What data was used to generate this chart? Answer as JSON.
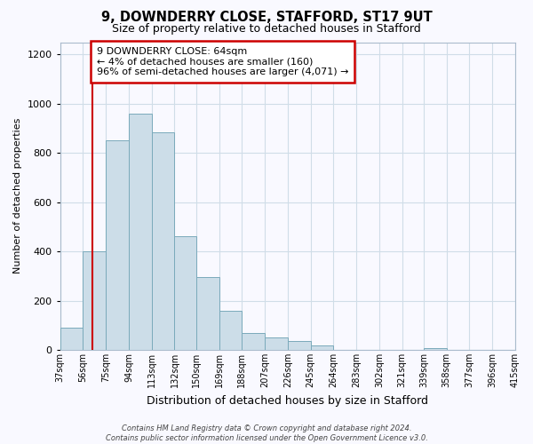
{
  "title1": "9, DOWNDERRY CLOSE, STAFFORD, ST17 9UT",
  "title2": "Size of property relative to detached houses in Stafford",
  "xlabel": "Distribution of detached houses by size in Stafford",
  "ylabel": "Number of detached properties",
  "bin_labels": [
    "37sqm",
    "56sqm",
    "75sqm",
    "94sqm",
    "113sqm",
    "132sqm",
    "150sqm",
    "169sqm",
    "188sqm",
    "207sqm",
    "226sqm",
    "245sqm",
    "264sqm",
    "283sqm",
    "302sqm",
    "321sqm",
    "339sqm",
    "358sqm",
    "377sqm",
    "396sqm",
    "415sqm"
  ],
  "bar_heights": [
    90,
    400,
    850,
    960,
    885,
    460,
    295,
    160,
    70,
    52,
    35,
    18,
    0,
    0,
    0,
    0,
    8,
    0,
    0,
    0,
    0
  ],
  "bar_color": "#ccdde8",
  "bar_edge_color": "#7aaabb",
  "ylim": [
    0,
    1250
  ],
  "yticks": [
    0,
    200,
    400,
    600,
    800,
    1000,
    1200
  ],
  "grid_color": "#d0dde8",
  "red_line_x": 64,
  "annotation_title": "9 DOWNDERRY CLOSE: 64sqm",
  "annotation_line1": "← 4% of detached houses are smaller (160)",
  "annotation_line2": "96% of semi-detached houses are larger (4,071) →",
  "annotation_box_color": "#ffffff",
  "annotation_border_color": "#cc0000",
  "red_line_color": "#cc0000",
  "footer1": "Contains HM Land Registry data © Crown copyright and database right 2024.",
  "footer2": "Contains public sector information licensed under the Open Government Licence v3.0.",
  "bg_color": "#f9f9ff"
}
